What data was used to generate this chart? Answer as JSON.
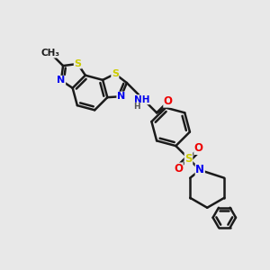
{
  "background_color": "#e8e8e8",
  "bond_color": "#1a1a1a",
  "bond_width": 1.8,
  "atom_colors": {
    "N": "#0000ee",
    "S": "#cccc00",
    "O": "#ee0000",
    "C": "#1a1a1a",
    "H": "#555555"
  },
  "figsize": [
    3.0,
    3.0
  ],
  "dpi": 100
}
